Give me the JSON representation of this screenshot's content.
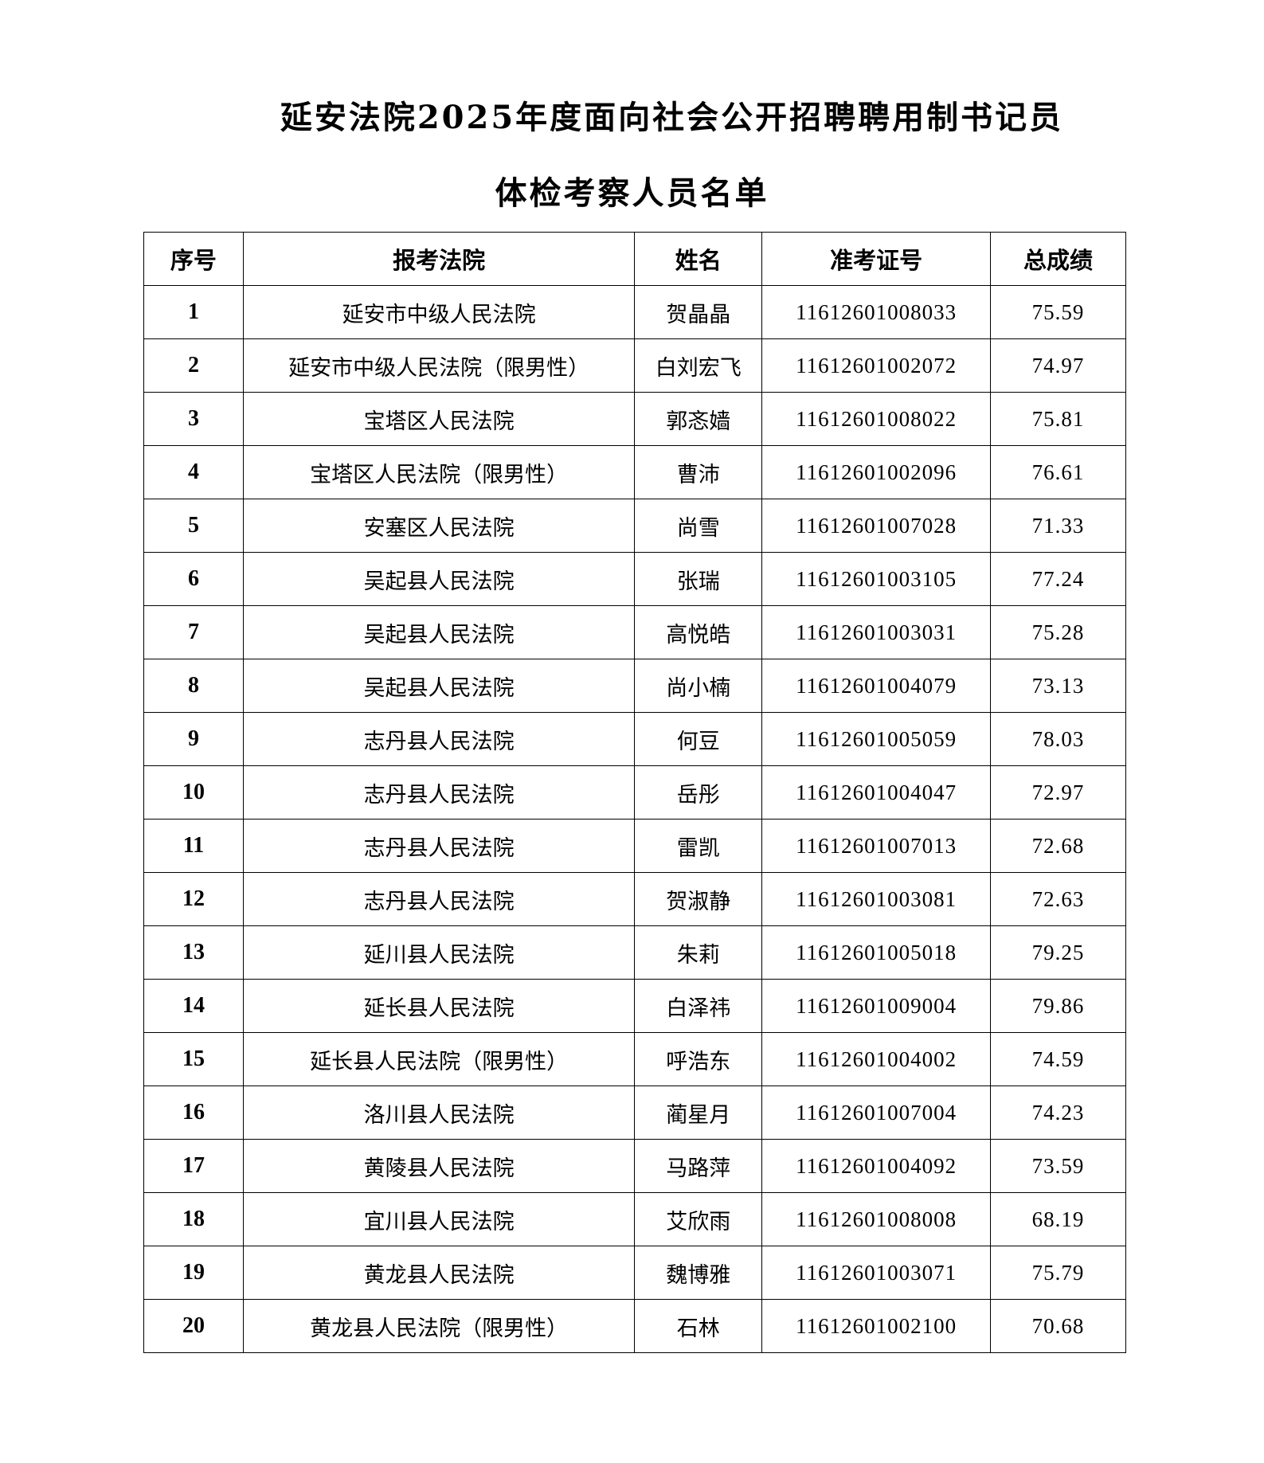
{
  "title_line1": "延安法院2025年度面向社会公开招聘聘用制书记员",
  "title_line2": "体检考察人员名单",
  "columns": [
    "序号",
    "报考法院",
    "姓名",
    "准考证号",
    "总成绩"
  ],
  "rows": [
    [
      "1",
      "延安市中级人民法院",
      "贺晶晶",
      "11612601008033",
      "75.59"
    ],
    [
      "2",
      "延安市中级人民法院（限男性）",
      "白刘宏飞",
      "11612601002072",
      "74.97"
    ],
    [
      "3",
      "宝塔区人民法院",
      "郭忞嫱",
      "11612601008022",
      "75.81"
    ],
    [
      "4",
      "宝塔区人民法院（限男性）",
      "曹沛",
      "11612601002096",
      "76.61"
    ],
    [
      "5",
      "安塞区人民法院",
      "尚雪",
      "11612601007028",
      "71.33"
    ],
    [
      "6",
      "吴起县人民法院",
      "张瑞",
      "11612601003105",
      "77.24"
    ],
    [
      "7",
      "吴起县人民法院",
      "高悦皓",
      "11612601003031",
      "75.28"
    ],
    [
      "8",
      "吴起县人民法院",
      "尚小楠",
      "11612601004079",
      "73.13"
    ],
    [
      "9",
      "志丹县人民法院",
      "何豆",
      "11612601005059",
      "78.03"
    ],
    [
      "10",
      "志丹县人民法院",
      "岳彤",
      "11612601004047",
      "72.97"
    ],
    [
      "11",
      "志丹县人民法院",
      "雷凯",
      "11612601007013",
      "72.68"
    ],
    [
      "12",
      "志丹县人民法院",
      "贺淑静",
      "11612601003081",
      "72.63"
    ],
    [
      "13",
      "延川县人民法院",
      "朱莉",
      "11612601005018",
      "79.25"
    ],
    [
      "14",
      "延长县人民法院",
      "白泽祎",
      "11612601009004",
      "79.86"
    ],
    [
      "15",
      "延长县人民法院（限男性）",
      "呼浩东",
      "11612601004002",
      "74.59"
    ],
    [
      "16",
      "洛川县人民法院",
      "蔺星月",
      "11612601007004",
      "74.23"
    ],
    [
      "17",
      "黄陵县人民法院",
      "马路萍",
      "11612601004092",
      "73.59"
    ],
    [
      "18",
      "宜川县人民法院",
      "艾欣雨",
      "11612601008008",
      "68.19"
    ],
    [
      "19",
      "黄龙县人民法院",
      "魏博雅",
      "11612601003071",
      "75.79"
    ],
    [
      "20",
      "黄龙县人民法院（限男性）",
      "石林",
      "11612601002100",
      "70.68"
    ]
  ]
}
